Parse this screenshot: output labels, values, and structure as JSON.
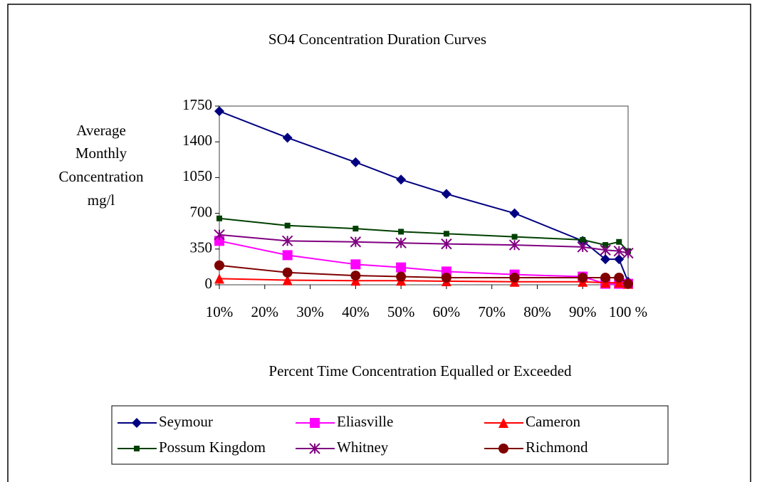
{
  "chart_data": {
    "type": "line",
    "title": "SO4 Concentration Duration Curves",
    "xlabel": "Percent Time Concentration Equalled or Exceeded",
    "ylabel": [
      "Average",
      "Monthly",
      "Concentration",
      "mg/l"
    ],
    "x": [
      10,
      25,
      40,
      50,
      60,
      75,
      90,
      95,
      98,
      100
    ],
    "xlim": [
      10,
      100
    ],
    "xticks": [
      {
        "value": 10,
        "label": "10%"
      },
      {
        "value": 20,
        "label": "20%"
      },
      {
        "value": 30,
        "label": "30%"
      },
      {
        "value": 40,
        "label": "40%"
      },
      {
        "value": 50,
        "label": "50%"
      },
      {
        "value": 60,
        "label": "60%"
      },
      {
        "value": 70,
        "label": "70%"
      },
      {
        "value": 80,
        "label": "80%"
      },
      {
        "value": 90,
        "label": "90%"
      },
      {
        "value": 100,
        "label": "100 %"
      }
    ],
    "ylim": [
      0,
      1750
    ],
    "yticks": [
      0,
      350,
      700,
      1050,
      1400,
      1750
    ],
    "series": [
      {
        "name": "Seymour",
        "color": "#000080",
        "marker": "diamond",
        "values": [
          1700,
          1440,
          1200,
          1030,
          890,
          700,
          430,
          250,
          250,
          30
        ]
      },
      {
        "name": "Eliasville",
        "color": "#ff00ff",
        "marker": "square",
        "values": [
          430,
          290,
          200,
          170,
          130,
          100,
          80,
          10,
          10,
          10
        ]
      },
      {
        "name": "Cameron",
        "color": "#ff0000",
        "marker": "triangle",
        "values": [
          60,
          45,
          40,
          40,
          35,
          30,
          30,
          20,
          20,
          10
        ]
      },
      {
        "name": "Possum Kingdom",
        "color": "#004000",
        "marker": "bar",
        "values": [
          650,
          580,
          550,
          520,
          500,
          470,
          440,
          390,
          420,
          330
        ]
      },
      {
        "name": "Whitney",
        "color": "#800080",
        "marker": "star",
        "values": [
          490,
          430,
          420,
          410,
          400,
          390,
          370,
          340,
          330,
          310
        ]
      },
      {
        "name": "Richmond",
        "color": "#800000",
        "marker": "circle",
        "values": [
          190,
          120,
          90,
          80,
          70,
          70,
          70,
          70,
          70,
          10
        ]
      }
    ]
  }
}
